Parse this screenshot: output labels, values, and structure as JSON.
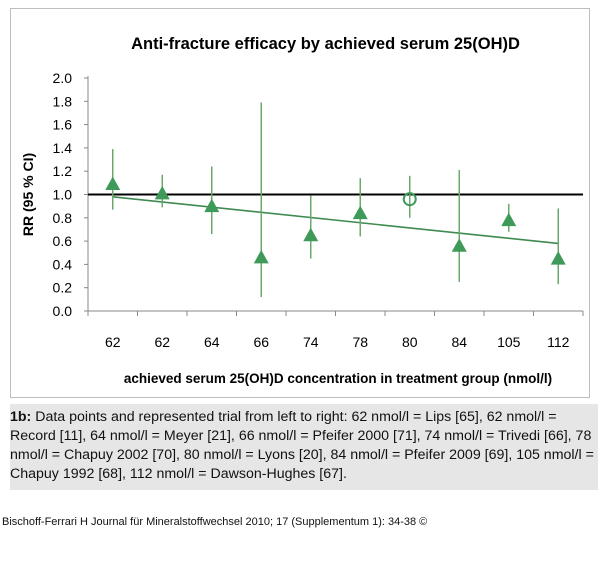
{
  "chart_data": {
    "type": "scatter",
    "title": "Anti-fracture efficacy by achieved serum 25(OH)D",
    "xlabel": "achieved serum 25(OH)D concentration in treatment group (nmol/l)",
    "ylabel": "RR (95 % CI)",
    "ylim": [
      0.0,
      2.0
    ],
    "yticks": [
      "0.0",
      "0.2",
      "0.4",
      "0.6",
      "0.8",
      "1.0",
      "1.2",
      "1.4",
      "1.6",
      "1.8",
      "2.0"
    ],
    "categories": [
      "62",
      "62",
      "64",
      "66",
      "74",
      "78",
      "80",
      "84",
      "105",
      "112"
    ],
    "points": [
      {
        "x": "62",
        "rr": 1.09,
        "lo": 0.87,
        "hi": 1.39,
        "marker": "triangle"
      },
      {
        "x": "62",
        "rr": 1.01,
        "lo": 0.89,
        "hi": 1.17,
        "marker": "triangle"
      },
      {
        "x": "64",
        "rr": 0.9,
        "lo": 0.66,
        "hi": 1.24,
        "marker": "triangle"
      },
      {
        "x": "66",
        "rr": 0.46,
        "lo": 0.12,
        "hi": 1.79,
        "marker": "triangle"
      },
      {
        "x": "74",
        "rr": 0.65,
        "lo": 0.45,
        "hi": 0.99,
        "marker": "triangle"
      },
      {
        "x": "78",
        "rr": 0.84,
        "lo": 0.64,
        "hi": 1.14,
        "marker": "triangle"
      },
      {
        "x": "80",
        "rr": 0.96,
        "lo": 0.8,
        "hi": 1.16,
        "marker": "circle"
      },
      {
        "x": "84",
        "rr": 0.56,
        "lo": 0.25,
        "hi": 1.21,
        "marker": "triangle"
      },
      {
        "x": "105",
        "rr": 0.78,
        "lo": 0.68,
        "hi": 0.92,
        "marker": "triangle"
      },
      {
        "x": "112",
        "rr": 0.45,
        "lo": 0.23,
        "hi": 0.88,
        "marker": "triangle"
      }
    ],
    "reference_line": 1.0,
    "trend_line": {
      "start": 0.98,
      "end": 0.58
    },
    "grid": false,
    "colors": {
      "marker": "#3f9a5a",
      "errorbar": "#6aa86e",
      "trend": "#3f8a50",
      "reference": "#000000"
    }
  },
  "caption": {
    "lead": "1b:",
    "text": "Data points and represented trial from left to right: 62 nmol/l = Lips [65], 62 nmol/l = Record [11], 64 nmol/l = Meyer [21], 66 nmol/l = Pfeifer 2000 [71], 74 nmol/l = Trivedi [66], 78 nmol/l = Chapuy 2002 [70], 80 nmol/l = Lyons [20], 84 nmol/l = Pfeifer 2009 [69], 105 nmol/l = Chapuy 1992 [68], 112 nmol/l = Dawson-Hughes [67]."
  },
  "source": "Bischoff-Ferrari H Journal für Mineralstoffwechsel 2010; 17 (Supplementum 1): 34-38 ©"
}
